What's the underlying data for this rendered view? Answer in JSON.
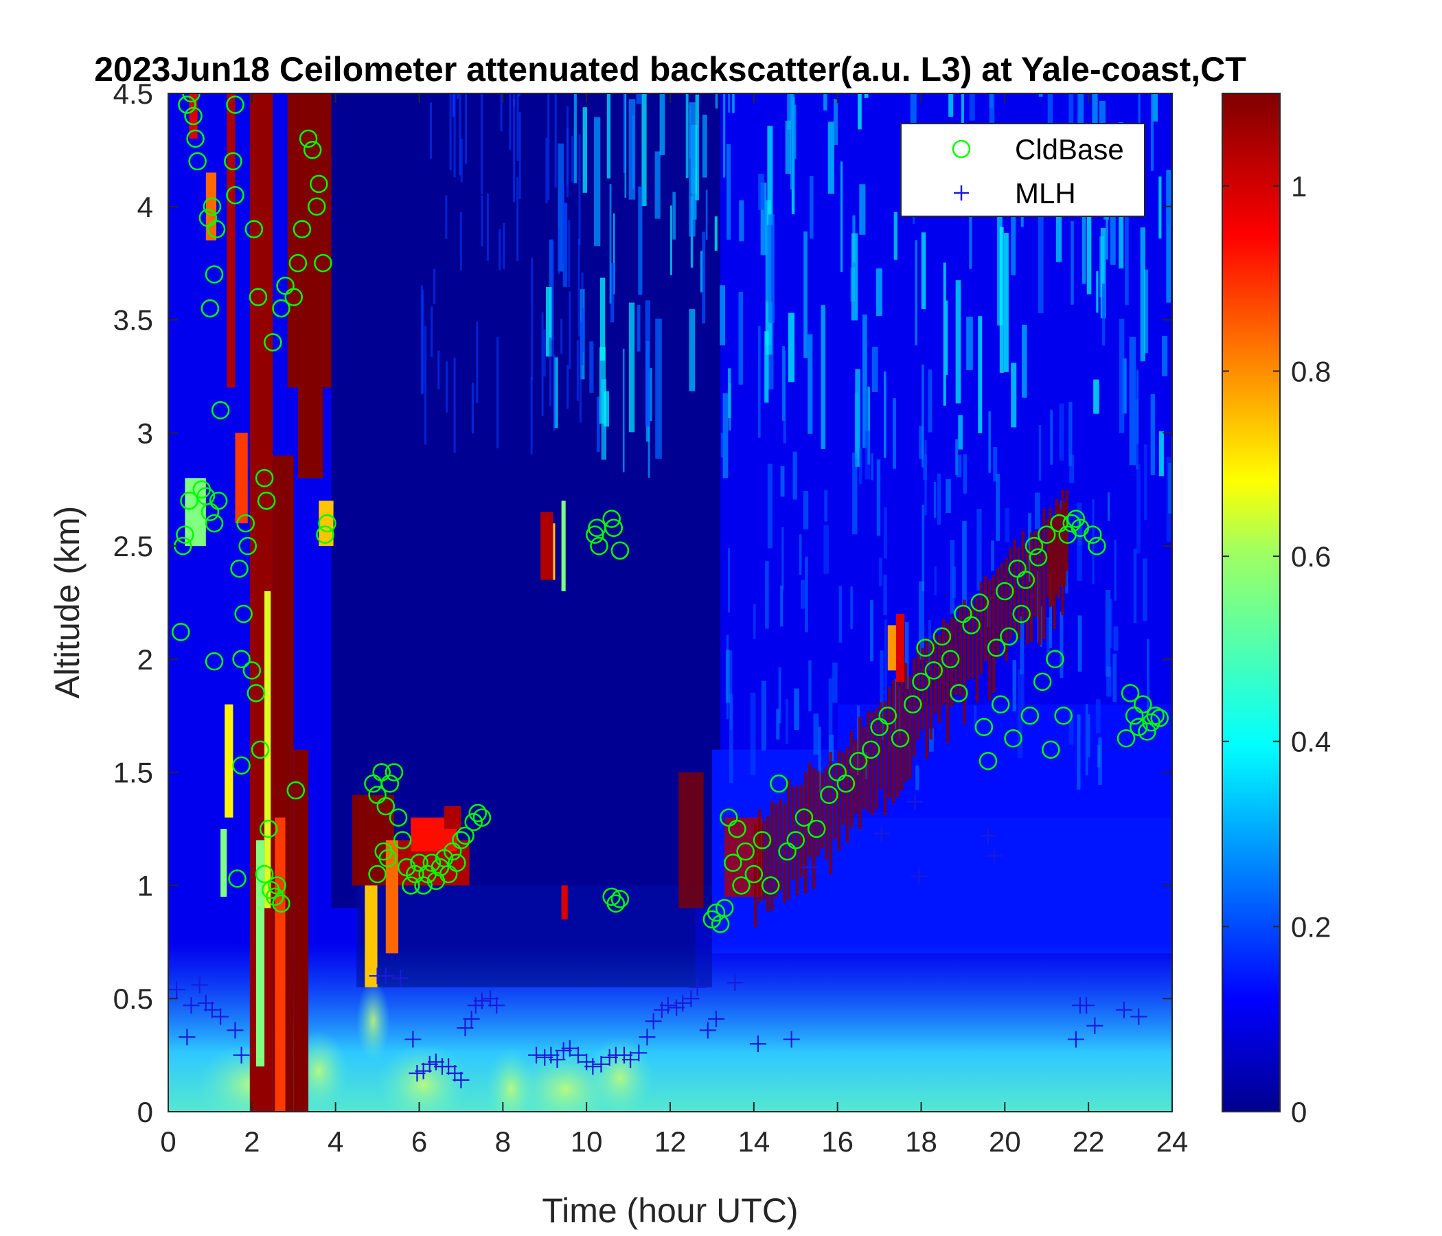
{
  "chart_data": {
    "type": "heatmap",
    "title": "2023Jun18 Ceilometer attenuated backscatter(a.u. L3) at Yale-coast,CT",
    "xlabel": "Time (hour UTC)",
    "ylabel": "Altitude (km)",
    "xlim": [
      0,
      24
    ],
    "ylim": [
      0,
      4.5
    ],
    "xticks": [
      "0",
      "2",
      "4",
      "6",
      "8",
      "10",
      "12",
      "14",
      "16",
      "18",
      "20",
      "22",
      "24"
    ],
    "yticks": [
      "0",
      "0.5",
      "1",
      "1.5",
      "2",
      "2.5",
      "3",
      "3.5",
      "4",
      "4.5"
    ],
    "colormap": "jet",
    "color_limits": [
      0,
      1.1
    ],
    "colorbar_ticks": [
      "0",
      "0.2",
      "0.4",
      "0.6",
      "0.8",
      "1"
    ],
    "legend_position": "top-right",
    "series": [
      {
        "name": "CldBase",
        "marker": "circle",
        "color": "#00ff00",
        "points": [
          [
            0.3,
            2.12
          ],
          [
            0.35,
            2.5
          ],
          [
            0.4,
            2.55
          ],
          [
            0.5,
            2.7
          ],
          [
            0.45,
            4.45
          ],
          [
            0.55,
            4.5
          ],
          [
            0.6,
            4.4
          ],
          [
            0.65,
            4.3
          ],
          [
            0.7,
            4.2
          ],
          [
            0.8,
            2.75
          ],
          [
            0.9,
            2.72
          ],
          [
            1.0,
            2.65
          ],
          [
            1.1,
            2.6
          ],
          [
            1.2,
            2.7
          ],
          [
            0.95,
            3.95
          ],
          [
            1.05,
            4.0
          ],
          [
            1.15,
            3.9
          ],
          [
            1.1,
            3.7
          ],
          [
            1.0,
            3.55
          ],
          [
            1.25,
            3.1
          ],
          [
            1.1,
            1.99
          ],
          [
            1.6,
            4.45
          ],
          [
            1.55,
            4.2
          ],
          [
            1.6,
            4.05
          ],
          [
            1.7,
            2.4
          ],
          [
            1.8,
            2.2
          ],
          [
            1.75,
            2.0
          ],
          [
            1.85,
            2.6
          ],
          [
            1.9,
            2.5
          ],
          [
            1.65,
            1.03
          ],
          [
            1.75,
            1.53
          ],
          [
            2.0,
            1.95
          ],
          [
            2.1,
            1.85
          ],
          [
            2.2,
            1.6
          ],
          [
            2.05,
            3.9
          ],
          [
            2.15,
            3.6
          ],
          [
            2.3,
            2.8
          ],
          [
            2.35,
            2.7
          ],
          [
            2.4,
            1.25
          ],
          [
            2.3,
            1.05
          ],
          [
            2.45,
            0.98
          ],
          [
            2.55,
            0.95
          ],
          [
            2.6,
            1.0
          ],
          [
            2.7,
            0.92
          ],
          [
            2.5,
            3.4
          ],
          [
            2.7,
            3.55
          ],
          [
            2.8,
            3.65
          ],
          [
            3.0,
            3.6
          ],
          [
            3.1,
            3.75
          ],
          [
            3.2,
            3.9
          ],
          [
            3.05,
            1.42
          ],
          [
            3.35,
            4.3
          ],
          [
            3.45,
            4.25
          ],
          [
            3.6,
            4.1
          ],
          [
            3.55,
            4.0
          ],
          [
            3.7,
            3.75
          ],
          [
            3.8,
            2.6
          ],
          [
            3.75,
            2.55
          ],
          [
            4.9,
            1.45
          ],
          [
            5.0,
            1.4
          ],
          [
            5.1,
            1.5
          ],
          [
            5.2,
            1.35
          ],
          [
            5.3,
            1.45
          ],
          [
            5.4,
            1.5
          ],
          [
            5.5,
            1.3
          ],
          [
            5.6,
            1.2
          ],
          [
            5.15,
            1.15
          ],
          [
            5.25,
            1.12
          ],
          [
            5.0,
            1.05
          ],
          [
            5.7,
            1.08
          ],
          [
            5.8,
            1.0
          ],
          [
            5.9,
            1.05
          ],
          [
            6.0,
            1.1
          ],
          [
            6.1,
            1.0
          ],
          [
            6.2,
            1.05
          ],
          [
            6.3,
            1.1
          ],
          [
            6.4,
            1.02
          ],
          [
            6.5,
            1.08
          ],
          [
            6.6,
            1.12
          ],
          [
            6.7,
            1.05
          ],
          [
            6.8,
            1.15
          ],
          [
            6.9,
            1.1
          ],
          [
            7.0,
            1.2
          ],
          [
            7.1,
            1.22
          ],
          [
            7.3,
            1.28
          ],
          [
            7.4,
            1.32
          ],
          [
            7.5,
            1.3
          ],
          [
            10.2,
            2.55
          ],
          [
            10.25,
            2.58
          ],
          [
            10.3,
            2.5
          ],
          [
            10.6,
            2.62
          ],
          [
            10.65,
            2.58
          ],
          [
            10.8,
            2.48
          ],
          [
            10.6,
            0.95
          ],
          [
            10.7,
            0.92
          ],
          [
            10.8,
            0.94
          ],
          [
            13.0,
            0.85
          ],
          [
            13.1,
            0.88
          ],
          [
            13.2,
            0.83
          ],
          [
            13.3,
            0.9
          ],
          [
            13.4,
            1.3
          ],
          [
            13.5,
            1.1
          ],
          [
            13.6,
            1.25
          ],
          [
            13.7,
            1.0
          ],
          [
            13.8,
            1.15
          ],
          [
            14.0,
            1.05
          ],
          [
            14.2,
            1.2
          ],
          [
            14.4,
            1.0
          ],
          [
            14.6,
            1.45
          ],
          [
            14.8,
            1.15
          ],
          [
            15.0,
            1.2
          ],
          [
            15.2,
            1.3
          ],
          [
            15.5,
            1.25
          ],
          [
            15.8,
            1.4
          ],
          [
            16.0,
            1.5
          ],
          [
            16.2,
            1.45
          ],
          [
            16.5,
            1.55
          ],
          [
            16.8,
            1.6
          ],
          [
            17.0,
            1.7
          ],
          [
            17.2,
            1.75
          ],
          [
            17.5,
            1.65
          ],
          [
            17.8,
            1.8
          ],
          [
            18.0,
            1.9
          ],
          [
            18.1,
            2.05
          ],
          [
            18.3,
            1.95
          ],
          [
            18.5,
            2.1
          ],
          [
            18.7,
            2.0
          ],
          [
            18.9,
            1.85
          ],
          [
            19.0,
            2.2
          ],
          [
            19.2,
            2.15
          ],
          [
            19.4,
            2.25
          ],
          [
            19.5,
            1.7
          ],
          [
            19.6,
            1.55
          ],
          [
            19.8,
            2.05
          ],
          [
            19.9,
            1.8
          ],
          [
            20.0,
            2.3
          ],
          [
            20.1,
            2.1
          ],
          [
            20.2,
            1.65
          ],
          [
            20.3,
            2.4
          ],
          [
            20.4,
            2.2
          ],
          [
            20.5,
            2.35
          ],
          [
            20.6,
            1.75
          ],
          [
            20.7,
            2.5
          ],
          [
            20.8,
            2.45
          ],
          [
            20.9,
            1.9
          ],
          [
            21.0,
            2.55
          ],
          [
            21.1,
            1.6
          ],
          [
            21.2,
            2.0
          ],
          [
            21.3,
            2.6
          ],
          [
            21.4,
            1.75
          ],
          [
            21.5,
            2.55
          ],
          [
            21.6,
            2.6
          ],
          [
            21.7,
            2.62
          ],
          [
            21.8,
            2.58
          ],
          [
            22.1,
            2.55
          ],
          [
            22.2,
            2.5
          ],
          [
            22.9,
            1.65
          ],
          [
            23.0,
            1.85
          ],
          [
            23.1,
            1.75
          ],
          [
            23.2,
            1.7
          ],
          [
            23.3,
            1.8
          ],
          [
            23.4,
            1.68
          ],
          [
            23.5,
            1.72
          ],
          [
            23.6,
            1.75
          ],
          [
            23.7,
            1.74
          ]
        ]
      },
      {
        "name": "MLH",
        "marker": "plus",
        "color": "#1a1adc",
        "points": [
          [
            0.2,
            0.54
          ],
          [
            0.45,
            0.33
          ],
          [
            0.55,
            0.47
          ],
          [
            0.75,
            0.56
          ],
          [
            0.9,
            0.48
          ],
          [
            1.05,
            0.45
          ],
          [
            1.25,
            0.42
          ],
          [
            1.6,
            0.36
          ],
          [
            1.75,
            0.25
          ],
          [
            5.0,
            0.6
          ],
          [
            5.2,
            0.6
          ],
          [
            5.55,
            0.59
          ],
          [
            5.85,
            0.32
          ],
          [
            5.95,
            0.17
          ],
          [
            6.1,
            0.18
          ],
          [
            6.25,
            0.21
          ],
          [
            6.4,
            0.22
          ],
          [
            6.55,
            0.2
          ],
          [
            6.7,
            0.2
          ],
          [
            6.85,
            0.17
          ],
          [
            7.0,
            0.14
          ],
          [
            7.1,
            0.37
          ],
          [
            7.25,
            0.41
          ],
          [
            7.35,
            0.47
          ],
          [
            7.5,
            0.49
          ],
          [
            7.7,
            0.5
          ],
          [
            7.85,
            0.47
          ],
          [
            8.8,
            0.25
          ],
          [
            9.0,
            0.24
          ],
          [
            9.15,
            0.25
          ],
          [
            9.3,
            0.23
          ],
          [
            9.45,
            0.27
          ],
          [
            9.6,
            0.28
          ],
          [
            9.8,
            0.25
          ],
          [
            10.0,
            0.22
          ],
          [
            10.15,
            0.2
          ],
          [
            10.35,
            0.21
          ],
          [
            10.55,
            0.24
          ],
          [
            10.7,
            0.25
          ],
          [
            10.9,
            0.25
          ],
          [
            11.05,
            0.23
          ],
          [
            11.25,
            0.26
          ],
          [
            11.45,
            0.33
          ],
          [
            11.6,
            0.4
          ],
          [
            11.8,
            0.45
          ],
          [
            11.95,
            0.47
          ],
          [
            12.15,
            0.46
          ],
          [
            12.3,
            0.48
          ],
          [
            12.5,
            0.5
          ],
          [
            12.65,
            0.55
          ],
          [
            12.9,
            0.36
          ],
          [
            13.1,
            0.41
          ],
          [
            13.55,
            0.57
          ],
          [
            14.1,
            0.3
          ],
          [
            14.9,
            0.32
          ],
          [
            15.35,
            1.08
          ],
          [
            17.05,
            1.23
          ],
          [
            17.85,
            1.37
          ],
          [
            17.95,
            1.04
          ],
          [
            19.6,
            1.22
          ],
          [
            19.75,
            1.13
          ],
          [
            21.7,
            0.32
          ],
          [
            21.8,
            0.47
          ],
          [
            21.95,
            0.47
          ],
          [
            22.15,
            0.38
          ],
          [
            22.85,
            0.45
          ],
          [
            23.2,
            0.42
          ]
        ]
      }
    ],
    "field_description": "Gridded attenuated backscatter over time (x) and altitude (y): high values (dark red, >1) in dense cloud columns near 2–4 h from the surface to 4.5 km and in cloud layers near 1–1.5 km (5–7.5 h) and rising from 1 km to 2.6 km (13–21.5 h); low values (dark blue, ~0) above 1 km between 4–13 h; moderate values (cyan/yellow, ~0.3–0.6) in the boundary layer below 0.5 km; broken cyan streaks (~0.3) aloft after 13 h."
  }
}
